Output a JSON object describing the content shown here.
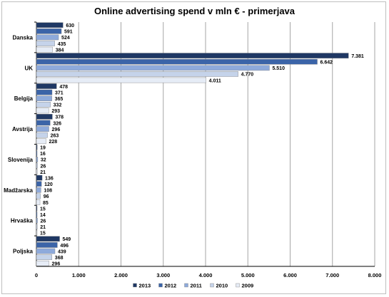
{
  "chart_data": {
    "type": "bar",
    "orientation": "horizontal",
    "title": "Online advertising spend v mln € - primerjava",
    "categories": [
      "Danska",
      "UK",
      "Belgija",
      "Avstrija",
      "Slovenija",
      "Madžarska",
      "Hrvaška",
      "Poljska"
    ],
    "series": [
      {
        "name": "2013",
        "color": "#1f3864",
        "values": [
          630,
          7381,
          478,
          378,
          19,
          136,
          15,
          549
        ],
        "labels": [
          "630",
          "7.381",
          "478",
          "378",
          "19",
          "136",
          "15",
          "549"
        ]
      },
      {
        "name": "2012",
        "color": "#3b64a8",
        "values": [
          591,
          6642,
          371,
          326,
          16,
          120,
          14,
          496
        ],
        "labels": [
          "591",
          "6.642",
          "371",
          "326",
          "16",
          "120",
          "14",
          "496"
        ]
      },
      {
        "name": "2011",
        "color": "#8eaadb",
        "values": [
          524,
          5510,
          365,
          296,
          32,
          108,
          26,
          439
        ],
        "labels": [
          "524",
          "5.510",
          "365",
          "296",
          "32",
          "108",
          "26",
          "439"
        ]
      },
      {
        "name": "2010",
        "color": "#c5d3ea",
        "values": [
          435,
          4770,
          332,
          263,
          26,
          96,
          21,
          368
        ],
        "labels": [
          "435",
          "4.770",
          "332",
          "263",
          "26",
          "96",
          "21",
          "368"
        ]
      },
      {
        "name": "2009",
        "color": "#e6ecf6",
        "values": [
          384,
          4011,
          293,
          228,
          21,
          85,
          15,
          296
        ],
        "labels": [
          "384",
          "4.011",
          "293",
          "228",
          "21",
          "85",
          "15",
          "296"
        ]
      }
    ],
    "xlim": [
      0,
      8000
    ],
    "xticks": [
      0,
      1000,
      2000,
      3000,
      4000,
      5000,
      6000,
      7000,
      8000
    ],
    "xtick_labels": [
      "0",
      "1.000",
      "2.000",
      "3.000",
      "4.000",
      "5.000",
      "6.000",
      "7.000",
      "8.000"
    ],
    "grid": "vertical",
    "legend": "bottom"
  }
}
